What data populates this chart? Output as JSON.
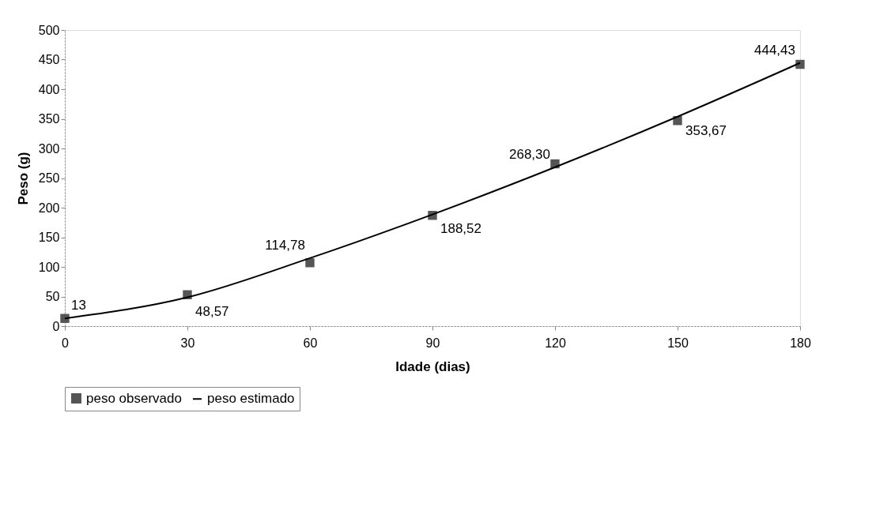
{
  "chart_data": {
    "type": "line",
    "xlabel": "Idade (dias)",
    "ylabel": "Peso (g)",
    "x": [
      0,
      30,
      60,
      90,
      120,
      150,
      180
    ],
    "series": [
      {
        "name": "peso observado",
        "type": "scatter",
        "marker": "square",
        "color": "#555555",
        "values": [
          13,
          53,
          107,
          187,
          274,
          347,
          442
        ]
      },
      {
        "name": "peso estimado",
        "marker": "none",
        "color": "#000000",
        "values": [
          13,
          48.57,
          114.78,
          188.52,
          268.3,
          353.67,
          444.43
        ],
        "value_labels": [
          "13",
          "48,57",
          "114,78",
          "188,52",
          "268,30",
          "353,67",
          "444,43"
        ]
      }
    ],
    "xlim": [
      0,
      180
    ],
    "xticks": [
      0,
      30,
      60,
      90,
      120,
      150,
      180
    ],
    "ylim": [
      0,
      500
    ],
    "yticks": [
      0,
      50,
      100,
      150,
      200,
      250,
      300,
      350,
      400,
      450,
      500
    ],
    "grid": false,
    "legend": "bottom"
  }
}
